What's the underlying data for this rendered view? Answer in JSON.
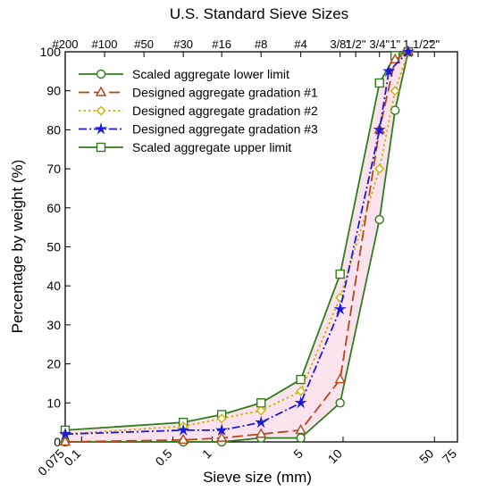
{
  "chart_data": {
    "type": "line",
    "title": "",
    "xlabel": "Sieve size (mm)",
    "ylabel": "Percentage by weight (%)",
    "x_scale": "log",
    "xlim": [
      0.075,
      75
    ],
    "ylim": [
      0,
      100
    ],
    "x_ticks": [
      0.075,
      0.1,
      0.5,
      1,
      5,
      10,
      50,
      75
    ],
    "x_tick_labels": [
      "0.075",
      "0.1",
      "0.5",
      "1",
      "5",
      "10",
      "50",
      "75"
    ],
    "y_ticks": [
      0,
      10,
      20,
      30,
      40,
      50,
      60,
      70,
      80,
      90,
      100
    ],
    "y_tick_labels": [
      "0",
      "10",
      "20",
      "30",
      "40",
      "50",
      "60",
      "70",
      "80",
      "90",
      "100"
    ],
    "top_axis": {
      "label": "U.S. Standard Sieve Sizes",
      "ticks": [
        {
          "label": "#200",
          "x": 0.075
        },
        {
          "label": "#100",
          "x": 0.15
        },
        {
          "label": "#50",
          "x": 0.3
        },
        {
          "label": "#30",
          "x": 0.6
        },
        {
          "label": "#16",
          "x": 1.18
        },
        {
          "label": "#8",
          "x": 2.36
        },
        {
          "label": "#4",
          "x": 4.75
        },
        {
          "label": "3/8\"",
          "x": 9.5
        },
        {
          "label": "1/2\"",
          "x": 12.5
        },
        {
          "label": "3/4\"",
          "x": 19
        },
        {
          "label": "1\"",
          "x": 25
        },
        {
          "label": "1 1/2\"",
          "x": 37.5
        },
        {
          "label": "2\"",
          "x": 50
        }
      ]
    },
    "legend_position": "top-left",
    "series": [
      {
        "name": "Scaled aggregate lower limit",
        "color": "#2e7d1a",
        "marker": "circle",
        "dash": "solid",
        "points": [
          [
            0.075,
            0
          ],
          [
            0.6,
            0
          ],
          [
            1.18,
            0
          ],
          [
            2.36,
            1
          ],
          [
            4.75,
            1
          ],
          [
            9.5,
            10
          ],
          [
            19,
            57
          ],
          [
            25,
            85
          ],
          [
            31.5,
            100
          ]
        ]
      },
      {
        "name": "Designed aggregate gradation #1",
        "color": "#b5451b",
        "marker": "triangle",
        "dash": "longdash",
        "points": [
          [
            0.075,
            0
          ],
          [
            0.6,
            0.5
          ],
          [
            1.18,
            1
          ],
          [
            2.36,
            2
          ],
          [
            4.75,
            3
          ],
          [
            9.5,
            16
          ],
          [
            19,
            80
          ],
          [
            25,
            98
          ],
          [
            31.5,
            100
          ]
        ]
      },
      {
        "name": "Designed aggregate gradation #2",
        "color": "#c8b400",
        "marker": "diamond",
        "dash": "dotted",
        "points": [
          [
            0.075,
            2
          ],
          [
            0.6,
            4
          ],
          [
            1.18,
            6
          ],
          [
            2.36,
            8
          ],
          [
            4.75,
            13
          ],
          [
            9.5,
            37
          ],
          [
            19,
            70
          ],
          [
            25,
            90
          ],
          [
            31.5,
            100
          ]
        ]
      },
      {
        "name": "Designed aggregate gradation #3",
        "color": "#1a1ad9",
        "marker": "star",
        "dash": "dashdot",
        "points": [
          [
            0.075,
            2
          ],
          [
            0.6,
            3
          ],
          [
            1.18,
            3
          ],
          [
            2.36,
            5
          ],
          [
            4.75,
            10
          ],
          [
            9.5,
            34
          ],
          [
            19,
            80
          ],
          [
            22.4,
            95
          ],
          [
            31.5,
            100
          ]
        ]
      },
      {
        "name": "Scaled aggregate upper limit",
        "color": "#2e7d1a",
        "marker": "square",
        "dash": "solid",
        "points": [
          [
            0.075,
            3
          ],
          [
            0.6,
            5
          ],
          [
            1.18,
            7
          ],
          [
            2.36,
            10
          ],
          [
            4.75,
            16
          ],
          [
            9.5,
            43
          ],
          [
            19,
            92
          ],
          [
            25,
            99
          ],
          [
            31.5,
            100
          ]
        ]
      }
    ]
  }
}
